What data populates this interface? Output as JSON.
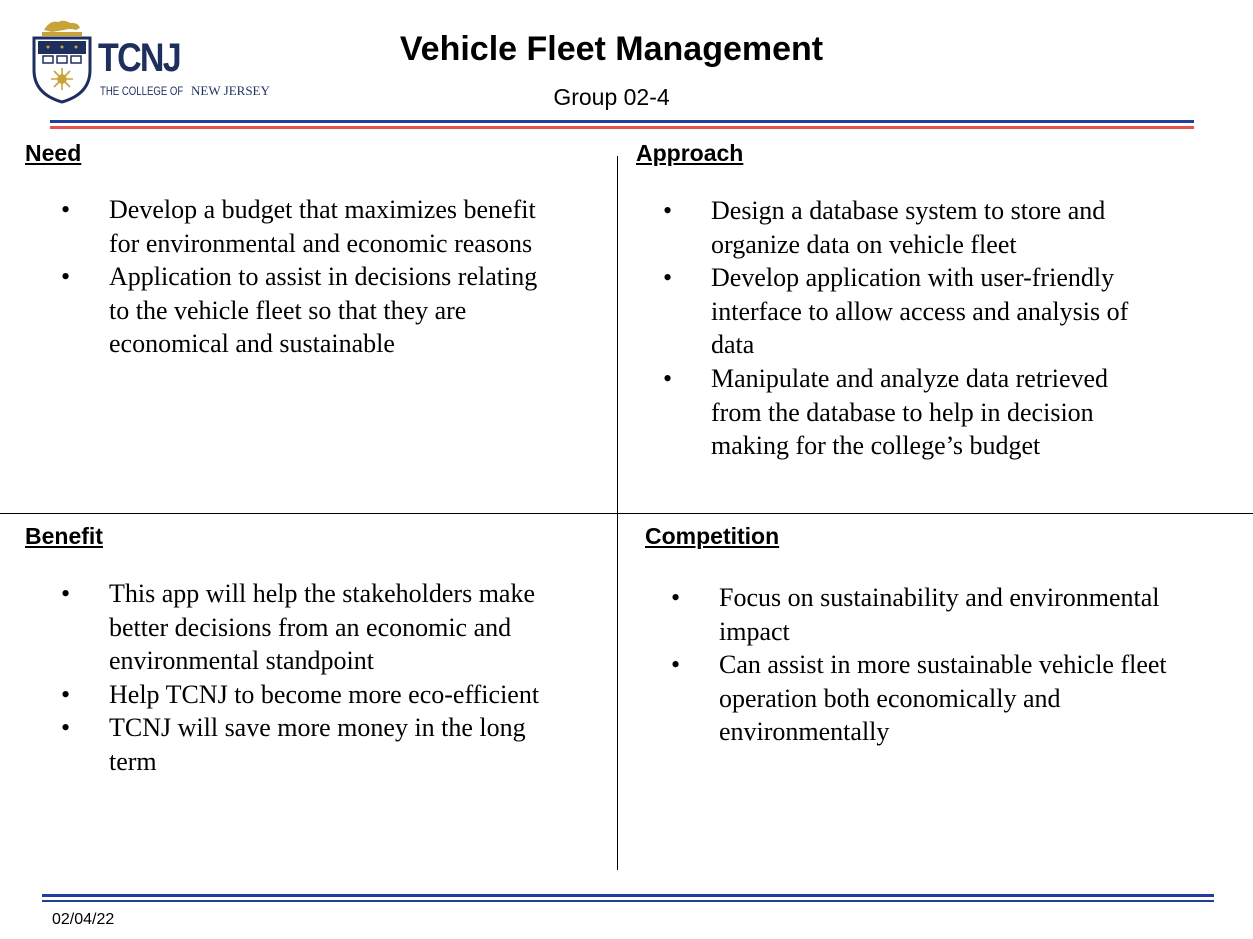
{
  "logo": {
    "wordmark": "TCNJ",
    "tagline_caps": "THE COLLEGE OF",
    "tagline_name": "NEW JERSEY"
  },
  "header": {
    "title": "Vehicle Fleet Management",
    "subtitle": "Group 02-4"
  },
  "bullet_glyph": "•",
  "sections": {
    "need": {
      "heading": "Need",
      "items": [
        "Develop a budget that maximizes benefit for environmental and economic reasons",
        "Application to assist in decisions relating to the vehicle fleet so that they are economical and sustainable"
      ]
    },
    "approach": {
      "heading": "Approach",
      "items": [
        "Design a database system to store and organize data on vehicle fleet",
        "Develop application with user-friendly interface to allow access and analysis of data",
        "Manipulate and analyze data retrieved from the database to help in decision making for the college’s budget"
      ]
    },
    "benefit": {
      "heading": "Benefit",
      "items": [
        "This app will help the stakeholders make better decisions from an economic and environmental standpoint",
        "Help TCNJ to become more eco-efficient",
        "TCNJ will save more money in the long term"
      ]
    },
    "competition": {
      "heading": "Competition",
      "items": [
        "Focus on sustainability and environmental impact",
        "Can assist in more sustainable vehicle fleet operation both economically and environmentally"
      ]
    }
  },
  "footer": {
    "date": "02/04/22"
  },
  "colors": {
    "navy": "#1f3f9a",
    "red": "#e8504a",
    "logo_navy": "#1e2f5e",
    "logo_gold": "#c8a33a"
  }
}
